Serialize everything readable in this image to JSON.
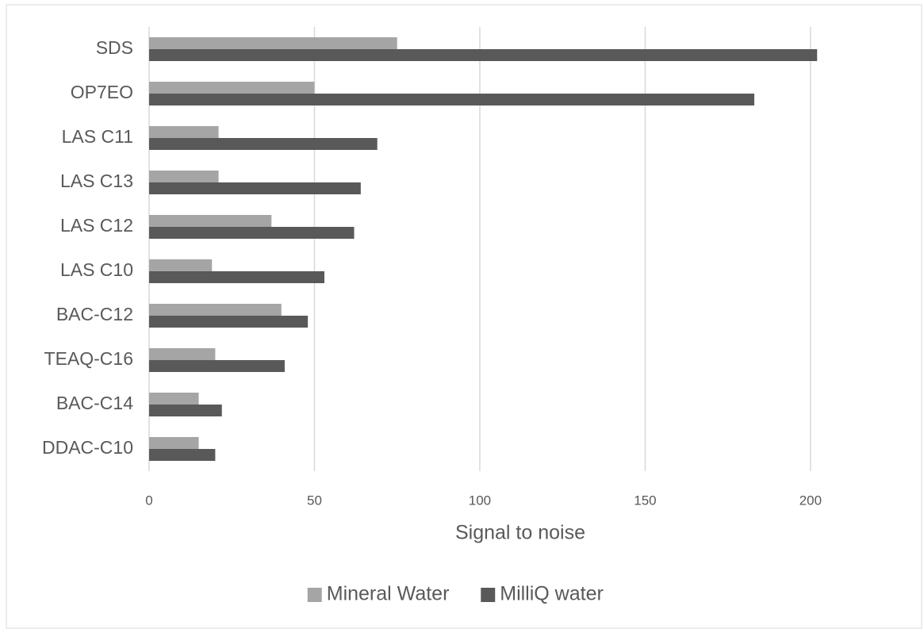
{
  "chart_data": {
    "type": "hbar",
    "x_label": "Signal to noise",
    "categories": [
      "SDS",
      "OP7EO",
      "LAS C11",
      "LAS C13",
      "LAS C12",
      "LAS C10",
      "BAC-C12",
      "TEAQ-C16",
      "BAC-C14",
      "DDAC-C10"
    ],
    "series": [
      {
        "name": "Mineral Water",
        "color": "#a5a5a5",
        "values": [
          75,
          50,
          21,
          21,
          37,
          19,
          40,
          20,
          15,
          15
        ]
      },
      {
        "name": "MilliQ water",
        "color": "#595959",
        "values": [
          202,
          183,
          69,
          64,
          62,
          53,
          48,
          41,
          22,
          20
        ]
      }
    ],
    "xlim": [
      0,
      230
    ],
    "xticks": [
      0,
      50,
      100,
      150,
      200
    ],
    "grid": true,
    "legend": "bottom"
  }
}
